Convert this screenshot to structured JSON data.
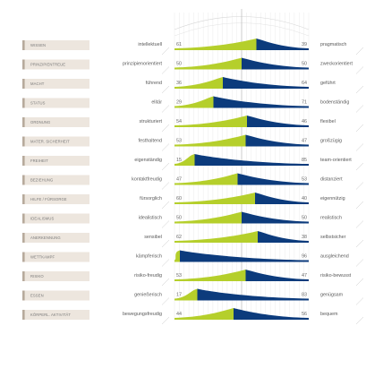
{
  "chart_data": {
    "type": "bar",
    "title": "",
    "colors": {
      "left": "#b5cf2b",
      "right": "#0c3b7c",
      "tab": "#ede6de",
      "tab_accent": "#b7aa9c"
    },
    "rows": [
      {
        "category": "WISSEN",
        "left_label": "intellektuell",
        "left_value": 61,
        "right_label": "pragmatisch",
        "right_value": 39
      },
      {
        "category": "PRINZIPIENTREUE",
        "left_label": "prinzipienorientiert",
        "left_value": 50,
        "right_label": "zweckorientiert",
        "right_value": 50
      },
      {
        "category": "MACHT",
        "left_label": "führend",
        "left_value": 36,
        "right_label": "geführt",
        "right_value": 64
      },
      {
        "category": "STATUS",
        "left_label": "elitär",
        "left_value": 29,
        "right_label": "bodenständig",
        "right_value": 71
      },
      {
        "category": "ORDNUNG",
        "left_label": "strukturiert",
        "left_value": 54,
        "right_label": "flexibel",
        "right_value": 46
      },
      {
        "category": "MATER. SICHERHEIT",
        "left_label": "festhaltend",
        "left_value": 53,
        "right_label": "großzügig",
        "right_value": 47
      },
      {
        "category": "FREIHEIT",
        "left_label": "eigenständig",
        "left_value": 15,
        "right_label": "team-orientiert",
        "right_value": 85
      },
      {
        "category": "BEZIEHUNG",
        "left_label": "kontaktfreudig",
        "left_value": 47,
        "right_label": "distanziert",
        "right_value": 53
      },
      {
        "category": "HILFE / FÜRSORGE",
        "left_label": "fürsorglich",
        "left_value": 60,
        "right_label": "eigennützig",
        "right_value": 40
      },
      {
        "category": "IDEALISMUS",
        "left_label": "idealistisch",
        "left_value": 50,
        "right_label": "realistisch",
        "right_value": 50
      },
      {
        "category": "ANERKENNUNG",
        "left_label": "sensibel",
        "left_value": 62,
        "right_label": "selbstsicher",
        "right_value": 38
      },
      {
        "category": "WETTKAMPF",
        "left_label": "kämpferisch",
        "left_value": 4,
        "right_label": "ausgleichend",
        "right_value": 96
      },
      {
        "category": "RISIKO",
        "left_label": "risiko-freudig",
        "left_value": 53,
        "right_label": "risiko-bewusst",
        "right_value": 47
      },
      {
        "category": "ESSEN",
        "left_label": "genießerisch",
        "left_value": 17,
        "right_label": "genügsam",
        "right_value": 83
      },
      {
        "category": "KÖRPERL. AKTIVITÄT",
        "left_label": "bewegungsfreudig",
        "left_value": 44,
        "right_label": "bequem",
        "right_value": 56
      }
    ]
  }
}
